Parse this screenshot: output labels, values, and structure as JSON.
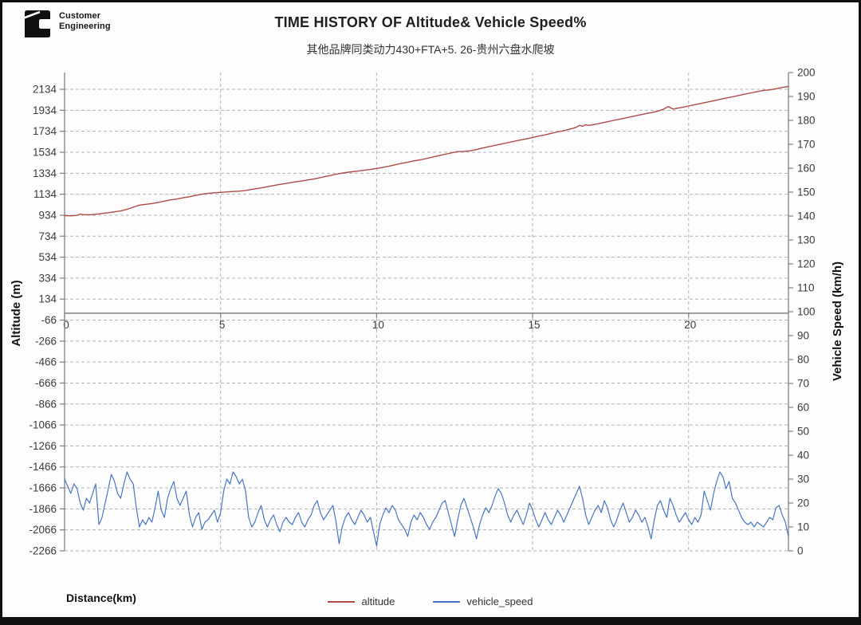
{
  "logo": {
    "line1": "Customer",
    "line2": "Engineering",
    "brand": "cummins-c-mark"
  },
  "chart_data": {
    "type": "line",
    "title": "TIME HISTORY OF Altitude& Vehicle Speed%",
    "subtitle": "其他品牌同类动力430+FTA+5. 26-贵州六盘水爬坡",
    "xlabel": "Distance(km)",
    "ylabel_left": "Altitude (m)",
    "ylabel_right": "Vehicle Speed (km/h)",
    "xlim": [
      0,
      23.2
    ],
    "x_ticks": [
      0,
      5,
      10,
      15,
      20
    ],
    "ylim_left": [
      -2266,
      2294
    ],
    "y_ticks_left": [
      2134,
      1934,
      1734,
      1534,
      1334,
      1134,
      934,
      734,
      534,
      334,
      134,
      -66,
      -266,
      -466,
      -666,
      -866,
      -1066,
      -1266,
      -1466,
      -1666,
      -1866,
      -2066,
      -2266
    ],
    "ylim_right": [
      0,
      200
    ],
    "y_ticks_right": [
      200,
      190,
      180,
      170,
      160,
      150,
      140,
      130,
      120,
      110,
      100,
      90,
      80,
      70,
      60,
      50,
      40,
      30,
      20,
      10,
      0
    ],
    "grid": "dashed",
    "legend_position": "bottom",
    "colors": {
      "gridline": "#b3b3b3",
      "axis": "#808080",
      "tick_text": "#3a3a3a"
    },
    "series": [
      {
        "name": "altitude",
        "axis": "left",
        "color": "#b04a47",
        "points": [
          [
            0,
            930
          ],
          [
            0.2,
            928
          ],
          [
            0.4,
            932
          ],
          [
            0.5,
            944
          ],
          [
            0.6,
            940
          ],
          [
            0.8,
            938
          ],
          [
            1,
            943
          ],
          [
            1.2,
            950
          ],
          [
            1.4,
            958
          ],
          [
            1.6,
            966
          ],
          [
            1.8,
            975
          ],
          [
            2,
            990
          ],
          [
            2.2,
            1010
          ],
          [
            2.4,
            1030
          ],
          [
            2.6,
            1038
          ],
          [
            2.8,
            1045
          ],
          [
            3,
            1055
          ],
          [
            3.2,
            1068
          ],
          [
            3.4,
            1080
          ],
          [
            3.6,
            1088
          ],
          [
            3.8,
            1100
          ],
          [
            4,
            1110
          ],
          [
            4.2,
            1122
          ],
          [
            4.4,
            1134
          ],
          [
            4.6,
            1142
          ],
          [
            4.8,
            1148
          ],
          [
            5,
            1152
          ],
          [
            5.2,
            1156
          ],
          [
            5.4,
            1160
          ],
          [
            5.6,
            1163
          ],
          [
            5.8,
            1170
          ],
          [
            6,
            1180
          ],
          [
            6.2,
            1190
          ],
          [
            6.4,
            1200
          ],
          [
            6.6,
            1212
          ],
          [
            6.8,
            1222
          ],
          [
            7,
            1232
          ],
          [
            7.2,
            1242
          ],
          [
            7.4,
            1252
          ],
          [
            7.6,
            1260
          ],
          [
            7.8,
            1270
          ],
          [
            8,
            1280
          ],
          [
            8.2,
            1292
          ],
          [
            8.4,
            1305
          ],
          [
            8.6,
            1318
          ],
          [
            8.8,
            1330
          ],
          [
            9,
            1340
          ],
          [
            9.2,
            1348
          ],
          [
            9.4,
            1355
          ],
          [
            9.6,
            1362
          ],
          [
            9.8,
            1370
          ],
          [
            10,
            1380
          ],
          [
            10.2,
            1390
          ],
          [
            10.4,
            1402
          ],
          [
            10.6,
            1415
          ],
          [
            10.8,
            1428
          ],
          [
            11,
            1440
          ],
          [
            11.2,
            1452
          ],
          [
            11.4,
            1462
          ],
          [
            11.6,
            1475
          ],
          [
            11.8,
            1488
          ],
          [
            12,
            1502
          ],
          [
            12.2,
            1515
          ],
          [
            12.4,
            1528
          ],
          [
            12.6,
            1540
          ],
          [
            12.8,
            1542
          ],
          [
            13,
            1548
          ],
          [
            13.2,
            1560
          ],
          [
            13.4,
            1574
          ],
          [
            13.6,
            1588
          ],
          [
            13.8,
            1600
          ],
          [
            14,
            1612
          ],
          [
            14.2,
            1625
          ],
          [
            14.4,
            1638
          ],
          [
            14.6,
            1650
          ],
          [
            14.8,
            1662
          ],
          [
            15,
            1675
          ],
          [
            15.2,
            1688
          ],
          [
            15.4,
            1700
          ],
          [
            15.6,
            1715
          ],
          [
            15.8,
            1728
          ],
          [
            16,
            1740
          ],
          [
            16.2,
            1755
          ],
          [
            16.4,
            1772
          ],
          [
            16.5,
            1790
          ],
          [
            16.6,
            1782
          ],
          [
            16.7,
            1796
          ],
          [
            16.8,
            1790
          ],
          [
            17,
            1800
          ],
          [
            17.2,
            1812
          ],
          [
            17.4,
            1825
          ],
          [
            17.6,
            1838
          ],
          [
            17.8,
            1850
          ],
          [
            18,
            1862
          ],
          [
            18.2,
            1875
          ],
          [
            18.4,
            1888
          ],
          [
            18.6,
            1900
          ],
          [
            18.8,
            1912
          ],
          [
            19,
            1925
          ],
          [
            19.2,
            1945
          ],
          [
            19.35,
            1970
          ],
          [
            19.5,
            1945
          ],
          [
            19.6,
            1952
          ],
          [
            19.8,
            1962
          ],
          [
            20,
            1975
          ],
          [
            20.2,
            1988
          ],
          [
            20.4,
            2000
          ],
          [
            20.6,
            2012
          ],
          [
            20.8,
            2025
          ],
          [
            21,
            2038
          ],
          [
            21.2,
            2050
          ],
          [
            21.4,
            2062
          ],
          [
            21.6,
            2075
          ],
          [
            21.8,
            2088
          ],
          [
            22,
            2100
          ],
          [
            22.2,
            2112
          ],
          [
            22.4,
            2124
          ],
          [
            22.6,
            2128
          ],
          [
            22.8,
            2140
          ],
          [
            23,
            2152
          ],
          [
            23.2,
            2162
          ]
        ]
      },
      {
        "name": "vehicle_speed",
        "axis": "right",
        "color": "#4472c4",
        "x_start": 0,
        "x_step": 0.1,
        "values": [
          30,
          27,
          24,
          28,
          26,
          20,
          17,
          22,
          20,
          24,
          28,
          11,
          14,
          20,
          26,
          32,
          29,
          24,
          22,
          28,
          33,
          30,
          28,
          18,
          10,
          13,
          11,
          14,
          12,
          18,
          25,
          17,
          14,
          22,
          26,
          29,
          22,
          19,
          22,
          25,
          15,
          10,
          14,
          16,
          9,
          12,
          13,
          15,
          17,
          12,
          16,
          25,
          30,
          28,
          33,
          31,
          28,
          30,
          25,
          14,
          10,
          12,
          16,
          19,
          13,
          10,
          13,
          15,
          11,
          8,
          12,
          14,
          12,
          11,
          14,
          16,
          12,
          10,
          13,
          15,
          19,
          21,
          16,
          13,
          15,
          17,
          19,
          12,
          3,
          10,
          14,
          16,
          13,
          11,
          14,
          17,
          15,
          12,
          14,
          8,
          2,
          11,
          15,
          18,
          16,
          19,
          17,
          13,
          11,
          9,
          6,
          12,
          15,
          13,
          16,
          14,
          11,
          9,
          12,
          14,
          17,
          20,
          21,
          16,
          11,
          6,
          13,
          19,
          22,
          18,
          14,
          10,
          5,
          11,
          15,
          18,
          16,
          19,
          23,
          26,
          24,
          20,
          15,
          12,
          15,
          17,
          14,
          11,
          15,
          20,
          17,
          13,
          10,
          13,
          16,
          13,
          11,
          14,
          17,
          15,
          12,
          15,
          18,
          21,
          24,
          27,
          22,
          15,
          11,
          14,
          17,
          19,
          16,
          21,
          18,
          13,
          10,
          13,
          17,
          20,
          16,
          12,
          14,
          17,
          15,
          12,
          14,
          10,
          5,
          13,
          19,
          21,
          17,
          14,
          22,
          19,
          15,
          12,
          14,
          16,
          13,
          11,
          14,
          12,
          15,
          25,
          21,
          17,
          24,
          29,
          33,
          31,
          26,
          29,
          22,
          20,
          17,
          14,
          12,
          11,
          12,
          10,
          12,
          11,
          10,
          12,
          14,
          13,
          18,
          19,
          15,
          12,
          6
        ]
      }
    ]
  }
}
